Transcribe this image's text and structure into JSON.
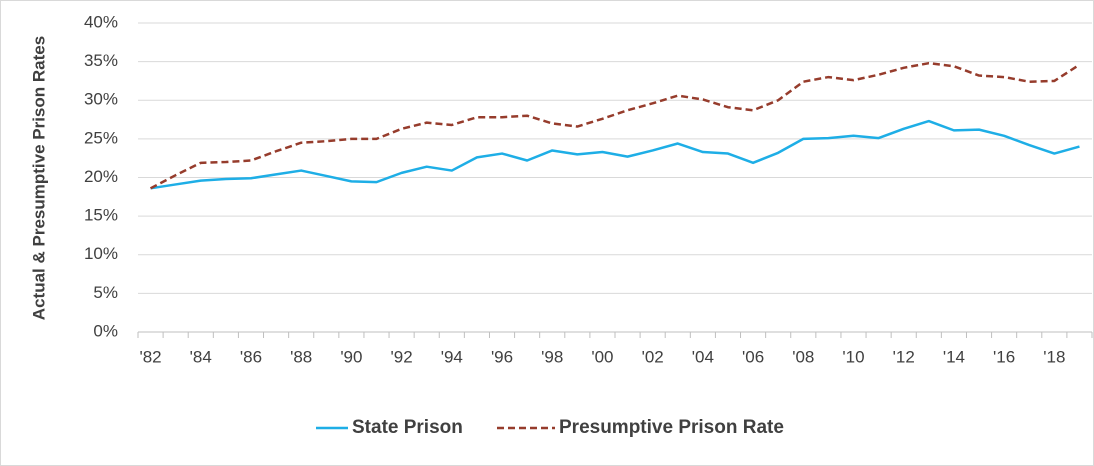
{
  "chart_data": {
    "type": "line",
    "y_label": "Actual & Presumptive Prison Rates",
    "categories": [
      "'82",
      null,
      "'84",
      null,
      "'86",
      null,
      "'88",
      null,
      "'90",
      null,
      "'92",
      null,
      "'94",
      null,
      "'96",
      null,
      "'98",
      null,
      "'00",
      null,
      "'02",
      null,
      "'04",
      null,
      "'06",
      null,
      "'08",
      null,
      "'10",
      null,
      "'12",
      null,
      "'14",
      null,
      "'16",
      null,
      "'18",
      null
    ],
    "series": [
      {
        "name": "State Prison",
        "color": "#1eaee6",
        "style": "solid",
        "values": [
          18.6,
          19.1,
          19.6,
          19.8,
          19.9,
          20.4,
          20.9,
          20.2,
          19.5,
          19.4,
          20.6,
          21.4,
          20.9,
          22.6,
          23.1,
          22.2,
          23.5,
          23.0,
          23.3,
          22.7,
          23.5,
          24.4,
          23.3,
          23.1,
          21.9,
          23.2,
          25.0,
          25.1,
          25.4,
          25.1,
          26.3,
          27.3,
          26.1,
          26.2,
          25.4,
          24.2,
          23.1,
          24.0
        ]
      },
      {
        "name": "Presumptive Prison Rate",
        "color": "#963c2c",
        "style": "dashed",
        "values": [
          18.6,
          20.3,
          21.9,
          22.0,
          22.2,
          23.4,
          24.5,
          24.7,
          25.0,
          25.0,
          26.3,
          27.1,
          26.8,
          27.8,
          27.8,
          28.0,
          27.0,
          26.6,
          27.6,
          28.7,
          29.6,
          30.6,
          30.1,
          29.1,
          28.7,
          30.0,
          32.4,
          33.0,
          32.6,
          33.3,
          34.2,
          34.8,
          34.4,
          33.2,
          33.0,
          32.4,
          32.5,
          34.6
        ]
      }
    ],
    "ylim": [
      0,
      40
    ],
    "yticks": [
      {
        "value": 0,
        "label": "0%"
      },
      {
        "value": 5,
        "label": "5%"
      },
      {
        "value": 10,
        "label": "10%"
      },
      {
        "value": 15,
        "label": "15%"
      },
      {
        "value": 20,
        "label": "20%"
      },
      {
        "value": 25,
        "label": "25%"
      },
      {
        "value": 30,
        "label": "30%"
      },
      {
        "value": 35,
        "label": "35%"
      },
      {
        "value": 40,
        "label": "40%"
      }
    ],
    "grid": true,
    "legend": "bottom"
  }
}
